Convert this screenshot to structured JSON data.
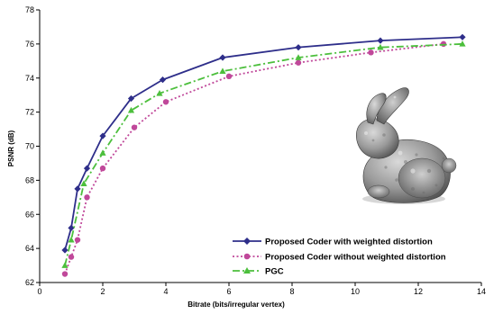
{
  "chart_data": {
    "type": "line",
    "title": "",
    "xlabel": "Bitrate (bits/irregular vertex)",
    "ylabel": "PSNR (dB)",
    "xlim": [
      0,
      14
    ],
    "ylim": [
      62,
      78
    ],
    "xticks": [
      0,
      2,
      4,
      6,
      8,
      10,
      12,
      14
    ],
    "yticks": [
      62,
      64,
      66,
      68,
      70,
      72,
      74,
      76,
      78
    ],
    "grid": false,
    "legend_position": "bottom-right",
    "series": [
      {
        "name": "Proposed Coder with weighted distortion",
        "color": "#2e2e8a",
        "line_style": "solid",
        "marker": "diamond",
        "x": [
          0.8,
          1.0,
          1.2,
          1.5,
          2.0,
          2.9,
          3.9,
          5.8,
          8.2,
          10.8,
          13.4
        ],
        "y": [
          63.9,
          65.2,
          67.5,
          68.7,
          70.6,
          72.8,
          73.9,
          75.2,
          75.8,
          76.2,
          76.4
        ]
      },
      {
        "name": "Proposed Coder without weighted distortion",
        "color": "#c0489a",
        "line_style": "dotted",
        "marker": "circle",
        "x": [
          0.8,
          1.0,
          1.2,
          1.5,
          2.0,
          3.0,
          4.0,
          6.0,
          8.2,
          10.5,
          12.8
        ],
        "y": [
          62.5,
          63.5,
          64.5,
          67.0,
          68.7,
          71.1,
          72.6,
          74.1,
          74.9,
          75.5,
          76.0
        ]
      },
      {
        "name": "PGC",
        "color": "#4cbf3c",
        "line_style": "dashdot",
        "marker": "triangle",
        "x": [
          0.8,
          1.0,
          1.4,
          2.0,
          2.9,
          3.8,
          5.8,
          8.2,
          10.8,
          13.4
        ],
        "y": [
          63.0,
          64.5,
          67.8,
          69.6,
          72.1,
          73.1,
          74.4,
          75.2,
          75.8,
          76.0
        ]
      }
    ]
  },
  "colors": {
    "axis": "#000000",
    "background": "#ffffff"
  },
  "inset_image": {
    "subject": "bunny"
  }
}
